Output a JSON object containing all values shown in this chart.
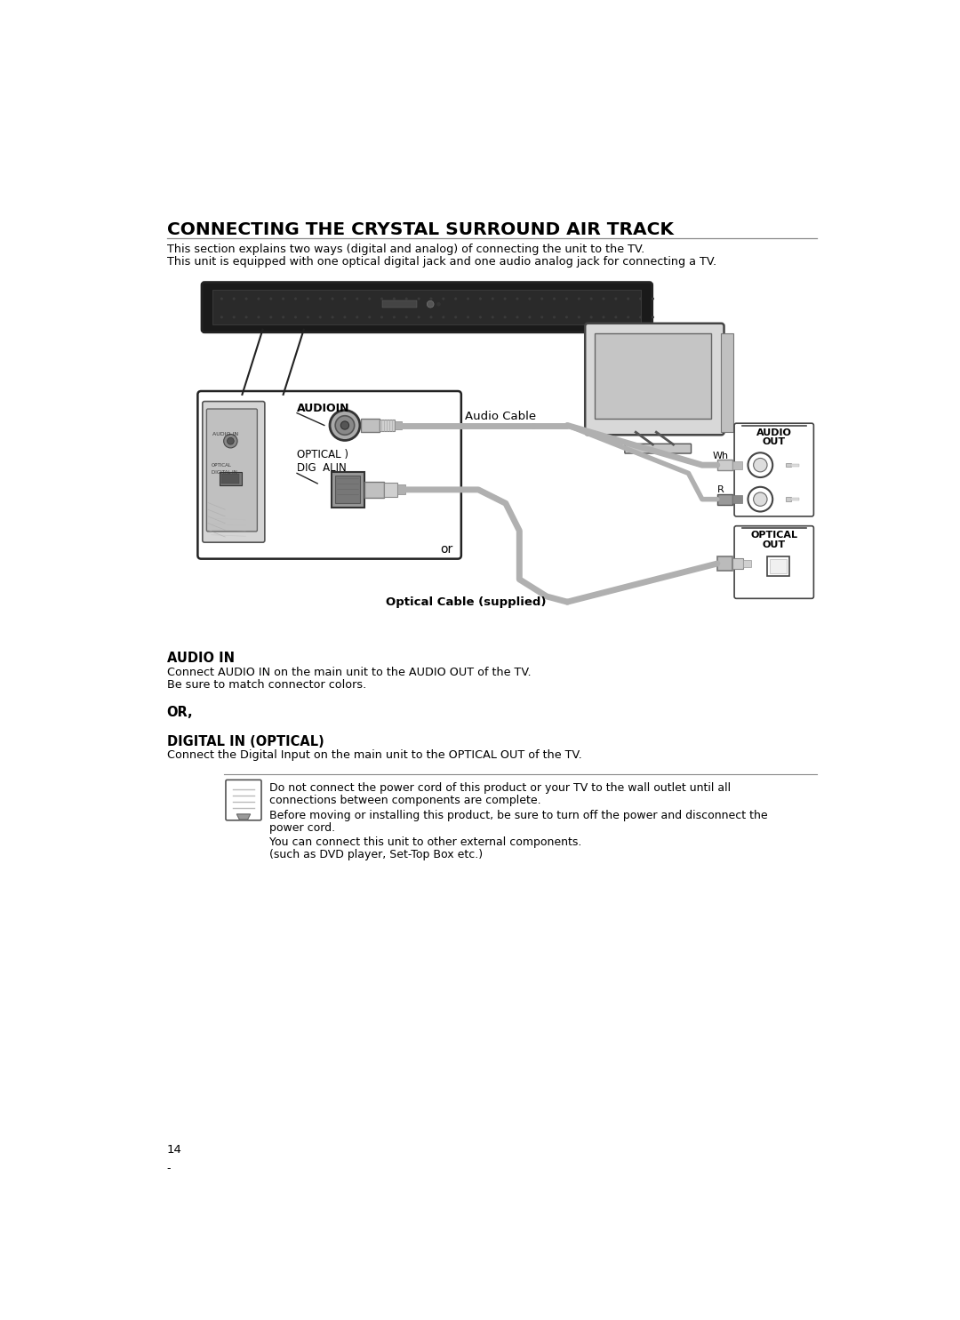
{
  "title": "CONNECTING THE CRYSTAL SURROUND AIR TRACK",
  "subtitle1": "This section explains two ways (digital and analog) of connecting the unit to the TV.",
  "subtitle2": "This unit is equipped with one optical digital jack and one audio analog jack for connecting a TV.",
  "audio_cable_label": "Audio Cable",
  "audio_in_diag": "AUDIOIN",
  "optical_diag1": "OPTICAL )",
  "optical_diag2": "DIG  ALIN",
  "audio_out_label1": "AUDIO",
  "audio_out_label2": "OUT",
  "wh_label": "Wh",
  "r_label": "R",
  "optical_out1": "OPTICAL",
  "optical_out2": "OUT",
  "optical_cable_label": "Optical Cable (supplied)",
  "or_label": "or",
  "section_audio_in_title": "AUDIO IN",
  "section_audio_in_body1": "Connect AUDIO IN on the main unit to the AUDIO OUT of the TV.",
  "section_audio_in_body2": "Be sure to match connector colors.",
  "section_or": "OR,",
  "section_digital_title": "DIGITAL IN (OPTICAL)",
  "section_digital_body": "Connect the Digital Input on the main unit to the OPTICAL OUT of the TV.",
  "note_line1": "Do not connect the power cord of this product or your TV to the wall outlet until all",
  "note_line2": "connections between components are complete.",
  "note_line3": "Before moving or installing this product, be sure to turn off the power and disconnect the",
  "note_line4": "power cord.",
  "note_line5": "You can connect this unit to other external components.",
  "note_line6": "(such as DVD player, Set-Top Box etc.)",
  "page_number": "14",
  "bg_color": "#ffffff",
  "text_color": "#000000",
  "gray_dark": "#222222",
  "gray_mid": "#888888",
  "gray_light": "#cccccc",
  "gray_fill": "#e0e0e0",
  "gray_device": "#d8d8d8",
  "gray_connector": "#aaaaaa",
  "gray_cable": "#b0b0b0"
}
